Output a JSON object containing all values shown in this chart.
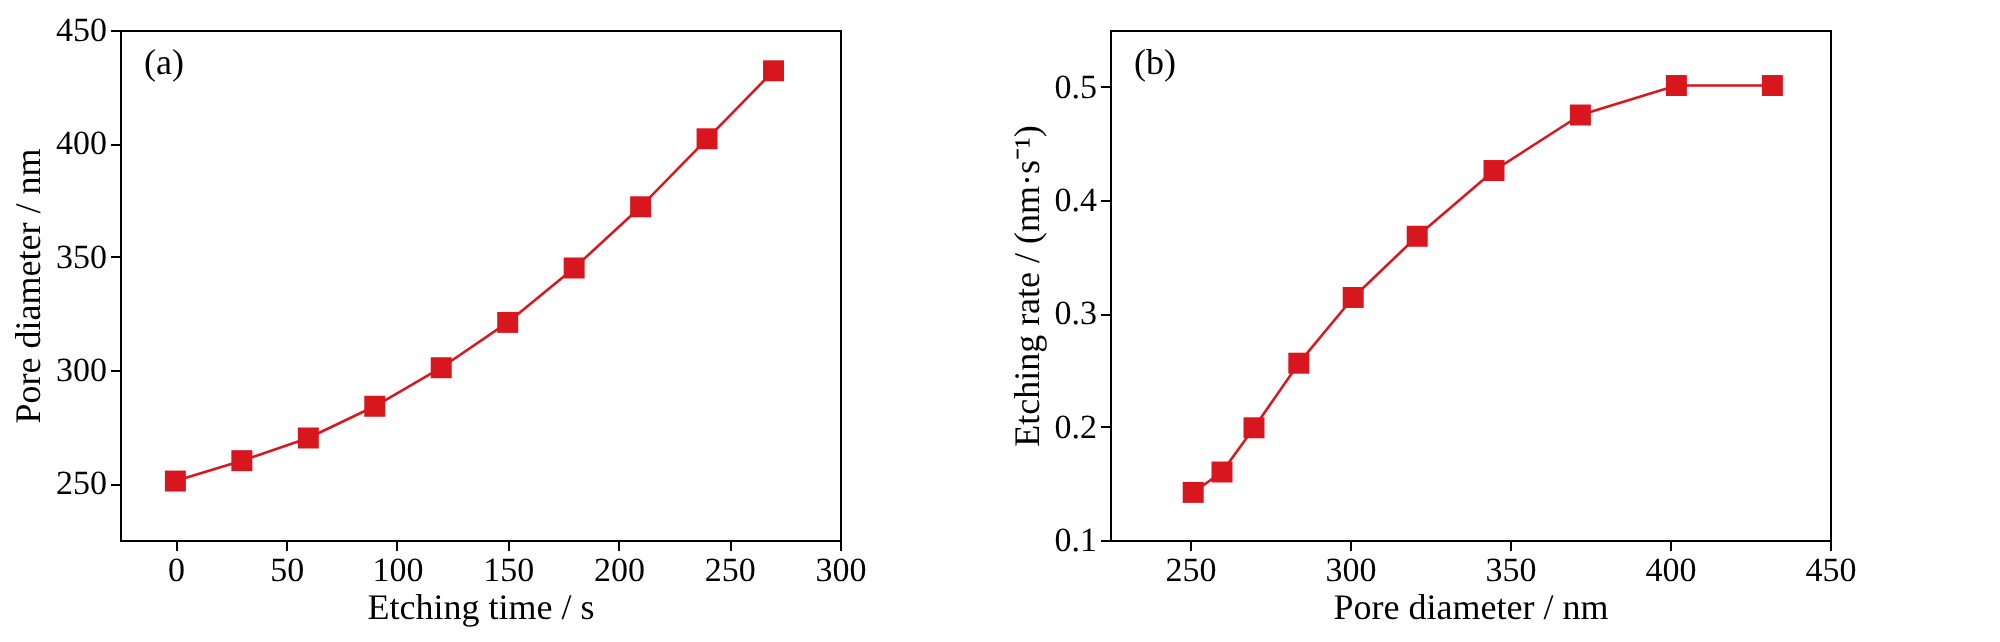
{
  "chart_data": [
    {
      "type": "line",
      "annotations": [
        "(a)"
      ],
      "xlabel": "Etching time / s",
      "ylabel": "Pore diameter / nm",
      "x": [
        0,
        30,
        60,
        90,
        120,
        150,
        180,
        210,
        240,
        270
      ],
      "series": [
        {
          "color": "#d7161e",
          "values": [
            251,
            260,
            270,
            284,
            301,
            321,
            345,
            372,
            402,
            432
          ]
        }
      ],
      "xlim": [
        -25,
        300
      ],
      "xticks": [
        0,
        50,
        100,
        150,
        200,
        250,
        300
      ],
      "ylim": [
        225,
        450
      ],
      "yticks": [
        250,
        300,
        350,
        400,
        450
      ],
      "marker": "square",
      "grid": false,
      "legend": false
    },
    {
      "type": "line",
      "annotations": [
        "(b)"
      ],
      "xlabel": "Pore diameter / nm",
      "ylabel": "Etching rate / (nm·s⁻¹)",
      "x": [
        251,
        260,
        270,
        284,
        301,
        321,
        345,
        372,
        402,
        432
      ],
      "series": [
        {
          "color": "#d7161e",
          "values": [
            0.142,
            0.16,
            0.199,
            0.256,
            0.314,
            0.368,
            0.426,
            0.475,
            0.501,
            0.501
          ]
        }
      ],
      "xlim": [
        225,
        450
      ],
      "xticks": [
        250,
        300,
        350,
        400,
        450
      ],
      "ylim": [
        0.1,
        0.55
      ],
      "yticks": [
        0.1,
        0.2,
        0.3,
        0.4,
        0.5
      ],
      "marker": "square",
      "grid": false,
      "legend": false
    }
  ]
}
